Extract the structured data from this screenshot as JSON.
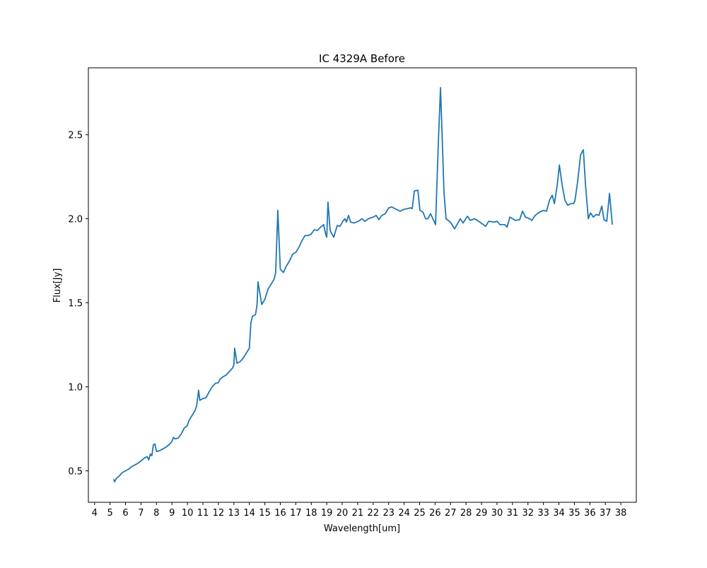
{
  "chart_data": {
    "type": "line",
    "title": "IC 4329A Before",
    "xlabel": "Wavelength[um]",
    "ylabel": "Flux[Jy]",
    "x": [
      5.23,
      5.3,
      5.4,
      5.6,
      5.8,
      6.0,
      6.2,
      6.4,
      6.6,
      6.8,
      7.0,
      7.2,
      7.4,
      7.5,
      7.6,
      7.7,
      7.8,
      7.9,
      8.0,
      8.2,
      8.4,
      8.6,
      8.8,
      9.0,
      9.1,
      9.2,
      9.4,
      9.6,
      9.8,
      10.0,
      10.1,
      10.3,
      10.5,
      10.6,
      10.72,
      10.8,
      11.0,
      11.2,
      11.4,
      11.6,
      11.8,
      12.0,
      12.1,
      12.3,
      12.5,
      12.7,
      12.9,
      13.0,
      13.05,
      13.2,
      13.4,
      13.6,
      13.8,
      14.0,
      14.1,
      14.2,
      14.4,
      14.5,
      14.56,
      14.8,
      15.0,
      15.2,
      15.4,
      15.6,
      15.7,
      15.84,
      16.0,
      16.2,
      16.4,
      16.6,
      16.8,
      17.0,
      17.2,
      17.4,
      17.6,
      17.8,
      18.0,
      18.2,
      18.4,
      18.6,
      18.8,
      18.9,
      19.0,
      19.08,
      19.22,
      19.45,
      19.68,
      19.86,
      20.04,
      20.18,
      20.27,
      20.41,
      20.54,
      20.77,
      21.05,
      21.28,
      21.46,
      21.69,
      22.01,
      22.19,
      22.37,
      22.56,
      22.78,
      23.01,
      23.2,
      23.52,
      23.74,
      23.97,
      24.2,
      24.43,
      24.52,
      24.66,
      24.89,
      25.02,
      25.21,
      25.39,
      25.53,
      25.71,
      26.03,
      26.21,
      26.35,
      26.58,
      26.71,
      26.99,
      27.26,
      27.63,
      27.81,
      28.09,
      28.27,
      28.54,
      28.82,
      29.27,
      29.46,
      29.82,
      30.0,
      30.19,
      30.51,
      30.65,
      30.83,
      31.19,
      31.47,
      31.65,
      31.84,
      32.11,
      32.25,
      32.47,
      32.75,
      33.02,
      33.2,
      33.39,
      33.57,
      33.71,
      33.89,
      34.03,
      34.21,
      34.39,
      34.57,
      34.76,
      34.94,
      35.03,
      35.21,
      35.4,
      35.58,
      35.72,
      35.9,
      36.04,
      36.22,
      36.41,
      36.59,
      36.77,
      36.91,
      37.09,
      37.27,
      37.45
    ],
    "series": [
      {
        "color": "#1f77b4",
        "values": [
          0.45,
          0.435,
          0.455,
          0.47,
          0.49,
          0.5,
          0.51,
          0.525,
          0.535,
          0.545,
          0.56,
          0.575,
          0.585,
          0.565,
          0.6,
          0.59,
          0.655,
          0.66,
          0.615,
          0.62,
          0.63,
          0.64,
          0.655,
          0.675,
          0.7,
          0.69,
          0.695,
          0.72,
          0.755,
          0.77,
          0.8,
          0.83,
          0.86,
          0.89,
          0.98,
          0.92,
          0.93,
          0.935,
          0.97,
          1.0,
          1.02,
          1.025,
          1.045,
          1.06,
          1.07,
          1.09,
          1.11,
          1.13,
          1.23,
          1.14,
          1.15,
          1.17,
          1.2,
          1.23,
          1.38,
          1.42,
          1.43,
          1.49,
          1.625,
          1.49,
          1.52,
          1.58,
          1.61,
          1.64,
          1.68,
          2.05,
          1.7,
          1.68,
          1.72,
          1.75,
          1.79,
          1.8,
          1.83,
          1.87,
          1.9,
          1.9,
          1.91,
          1.935,
          1.93,
          1.95,
          1.965,
          1.92,
          1.89,
          2.1,
          1.93,
          1.89,
          1.96,
          1.955,
          1.985,
          2.0,
          1.98,
          2.02,
          1.98,
          1.975,
          1.985,
          2.0,
          1.985,
          2.0,
          2.01,
          2.02,
          1.995,
          2.02,
          2.03,
          2.065,
          2.07,
          2.055,
          2.045,
          2.055,
          2.06,
          2.065,
          2.06,
          2.165,
          2.17,
          2.05,
          2.04,
          2.0,
          2.0,
          2.03,
          1.965,
          2.45,
          2.78,
          2.15,
          2.0,
          1.98,
          1.94,
          2.0,
          1.975,
          2.015,
          1.99,
          2.0,
          1.985,
          1.955,
          1.985,
          1.98,
          1.985,
          1.965,
          1.965,
          1.95,
          2.01,
          1.99,
          1.995,
          2.045,
          2.01,
          2.0,
          1.99,
          2.02,
          2.04,
          2.05,
          2.045,
          2.11,
          2.14,
          2.09,
          2.2,
          2.32,
          2.2,
          2.11,
          2.08,
          2.09,
          2.09,
          2.105,
          2.22,
          2.38,
          2.41,
          2.2,
          2.0,
          2.035,
          2.01,
          2.025,
          2.02,
          2.075,
          1.995,
          1.985,
          2.15,
          1.965
        ]
      }
    ],
    "xlim": [
      3.6,
      39.0
    ],
    "ylim": [
      0.313,
      2.898
    ],
    "xticks": [
      4,
      5,
      6,
      7,
      8,
      9,
      10,
      11,
      12,
      13,
      14,
      15,
      16,
      17,
      18,
      19,
      20,
      21,
      22,
      23,
      24,
      25,
      26,
      27,
      28,
      29,
      30,
      31,
      32,
      33,
      34,
      35,
      36,
      37,
      38
    ],
    "yticks": [
      0.5,
      {
        "value": 1.0,
        "label": "1.0"
      },
      1.5,
      {
        "value": 2.0,
        "label": "2.0"
      },
      2.5
    ]
  }
}
